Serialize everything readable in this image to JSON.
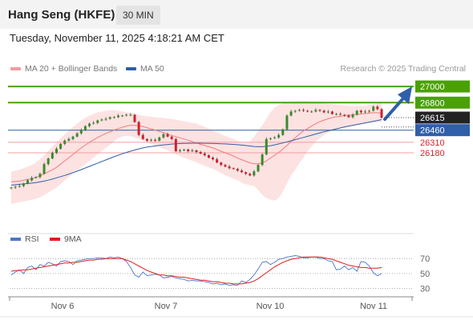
{
  "header": {
    "title": "Hang Seng (HKFE)",
    "timeframe": "30 MIN"
  },
  "timestamp": "Tuesday, November 11, 2025 4:18:21 AM CET",
  "legend": {
    "ma20": "MA 20 + Bollinger Bands",
    "ma50": "MA 50"
  },
  "credit": "Research © 2025 Trading Central",
  "rsi_legend": {
    "rsi": "RSI",
    "ma9": "9MA"
  },
  "colors": {
    "green": "#4aa103",
    "blue": "#2f5fa8",
    "red": "#d9232d",
    "band": "#fde0e0",
    "up": "#3a8a2a",
    "down": "#d11f2a"
  },
  "chart_data": [
    {
      "type": "candlestick",
      "title": "Hang Seng (HKFE)",
      "x_labels": [
        "Nov 6",
        "Nov 7",
        "Nov 10",
        "Nov 11"
      ],
      "ylim": [
        25280,
        27080
      ],
      "current_price": 26615,
      "levels": [
        {
          "value": 27000,
          "label": "27000",
          "type": "resistance"
        },
        {
          "value": 26800,
          "label": "26800",
          "type": "resistance"
        },
        {
          "value": 26615,
          "label": "26615",
          "type": "last"
        },
        {
          "value": 26460,
          "label": "26460",
          "type": "pivot"
        },
        {
          "value": 26310,
          "label": "26310",
          "type": "support"
        },
        {
          "value": 26180,
          "label": "26180",
          "type": "support"
        }
      ],
      "close": [
        25750,
        25760,
        25770,
        25800,
        25840,
        25870,
        25880,
        25920,
        26040,
        26110,
        26180,
        26230,
        26290,
        26330,
        26350,
        26380,
        26420,
        26460,
        26510,
        26540,
        26550,
        26580,
        26590,
        26600,
        26620,
        26620,
        26640,
        26640,
        26650,
        26650,
        26560,
        26400,
        26350,
        26330,
        26340,
        26330,
        26370,
        26410,
        26380,
        26350,
        26200,
        26210,
        26220,
        26200,
        26210,
        26190,
        26170,
        26150,
        26120,
        26100,
        26060,
        26030,
        26010,
        25990,
        25980,
        25960,
        25940,
        25920,
        25900,
        25950,
        26030,
        26160,
        26350,
        26360,
        26370,
        26400,
        26470,
        26640,
        26690,
        26700,
        26710,
        26700,
        26690,
        26690,
        26710,
        26700,
        26680,
        26690,
        26660,
        26660,
        26650,
        26640,
        26620,
        26650,
        26700,
        26680,
        26690,
        26700,
        26750,
        26720,
        26615
      ],
      "series": [
        {
          "name": "MA 20",
          "values": [
            25820,
            25825,
            25830,
            25840,
            25850,
            25860,
            25875,
            25895,
            25920,
            25945,
            25970,
            26000,
            26040,
            26080,
            26120,
            26160,
            26200,
            26240,
            26275,
            26310,
            26340,
            26370,
            26395,
            26420,
            26440,
            26460,
            26480,
            26495,
            26510,
            26520,
            26520,
            26515,
            26505,
            26490,
            26475,
            26460,
            26445,
            26430,
            26410,
            26395,
            26380,
            26365,
            26350,
            26335,
            26320,
            26300,
            26285,
            26270,
            26255,
            26240,
            26220,
            26200,
            26180,
            26160,
            26140,
            26115,
            26095,
            26075,
            26055,
            26045,
            26045,
            26055,
            26080,
            26115,
            26150,
            26185,
            26225,
            26270,
            26320,
            26365,
            26410,
            26450,
            26480,
            26510,
            26540,
            26565,
            26585,
            26600,
            26615,
            26625,
            26630,
            26640,
            26645,
            26650,
            26655,
            26660,
            26665,
            26670,
            26675,
            26675,
            26670
          ]
        },
        {
          "name": "MA 50",
          "values": [
            25780,
            25785,
            25790,
            25795,
            25800,
            25805,
            25812,
            25820,
            25830,
            25842,
            25855,
            25870,
            25885,
            25900,
            25917,
            25935,
            25953,
            25972,
            25992,
            26012,
            26032,
            26052,
            26072,
            26092,
            26112,
            26132,
            26150,
            26168,
            26185,
            26200,
            26215,
            26228,
            26240,
            26250,
            26258,
            26265,
            26272,
            26278,
            26283,
            26288,
            26292,
            26295,
            26297,
            26298,
            26299,
            26299,
            26299,
            26298,
            26297,
            26296,
            26294,
            26292,
            26290,
            26287,
            26284,
            26280,
            26275,
            26270,
            26264,
            26258,
            26255,
            26255,
            26260,
            26268,
            26278,
            26290,
            26302,
            26315,
            26328,
            26342,
            26356,
            26370,
            26384,
            26398,
            26412,
            26426,
            26440,
            26452,
            26464,
            26476,
            26488,
            26500,
            26510,
            26520,
            26530,
            26540,
            26550,
            26560,
            26570,
            26580,
            26590
          ]
        }
      ],
      "bollinger": {
        "upper": [
          25950,
          25960,
          25970,
          25990,
          26010,
          26030,
          26060,
          26100,
          26150,
          26200,
          26260,
          26310,
          26360,
          26410,
          26450,
          26500,
          26540,
          26580,
          26610,
          26640,
          26660,
          26680,
          26690,
          26700,
          26705,
          26705,
          26700,
          26690,
          26680,
          26675,
          26665,
          26650,
          26640,
          26630,
          26625,
          26620,
          26615,
          26610,
          26605,
          26600,
          26590,
          26580,
          26570,
          26560,
          26550,
          26540,
          26520,
          26500,
          26480,
          26455,
          26430,
          26410,
          26390,
          26370,
          26350,
          26330,
          26310,
          26300,
          26320,
          26380,
          26450,
          26520,
          26600,
          26680,
          26740,
          26770,
          26790,
          26800,
          26810,
          26815,
          26820,
          26820,
          26815,
          26810,
          26800,
          26795,
          26790,
          26785,
          26780,
          26775,
          26770,
          26765,
          26760,
          26760,
          26760,
          26760,
          26760,
          26770,
          26780,
          26790,
          26800
        ],
        "lower": [
          25550,
          25560,
          25570,
          25580,
          25590,
          25600,
          25610,
          25630,
          25660,
          25690,
          25720,
          25750,
          25790,
          25840,
          25880,
          25920,
          25960,
          26000,
          26040,
          26080,
          26120,
          26160,
          26200,
          26240,
          26280,
          26320,
          26360,
          26380,
          26390,
          26385,
          26370,
          26350,
          26330,
          26310,
          26290,
          26270,
          26250,
          26230,
          26210,
          26190,
          26160,
          26140,
          26120,
          26100,
          26080,
          26060,
          26040,
          26020,
          26000,
          25980,
          25960,
          25930,
          25900,
          25880,
          25860,
          25840,
          25810,
          25790,
          25780,
          25770,
          25720,
          25660,
          25620,
          25600,
          25590,
          25620,
          25700,
          25800,
          25900,
          25970,
          26050,
          26120,
          26200,
          26260,
          26320,
          26360,
          26400,
          26430,
          26450,
          26470,
          26480,
          26490,
          26500,
          26510,
          26520,
          26530,
          26540,
          26550,
          26555,
          26560,
          26560
        ]
      }
    },
    {
      "type": "line",
      "title": "RSI",
      "ylim": [
        22,
        82
      ],
      "ticks": [
        70,
        50,
        30
      ],
      "series": [
        {
          "name": "RSI",
          "values": [
            48,
            52,
            55,
            50,
            58,
            60,
            55,
            62,
            60,
            65,
            63,
            60,
            66,
            67,
            66,
            62,
            67,
            68,
            69,
            70,
            70,
            71,
            71,
            70,
            72,
            71,
            72,
            70,
            66,
            58,
            48,
            45,
            52,
            47,
            48,
            49,
            48,
            44,
            45,
            46,
            44,
            43,
            42,
            40,
            41,
            40,
            40,
            39,
            38,
            36,
            37,
            35,
            36,
            34,
            35,
            34,
            40,
            38,
            42,
            48,
            56,
            65,
            66,
            62,
            65,
            69,
            70,
            72,
            73,
            74,
            73,
            71,
            71,
            72,
            72,
            70,
            70,
            67,
            66,
            55,
            56,
            60,
            55,
            58,
            53,
            66,
            65,
            60,
            51,
            47,
            50
          ]
        },
        {
          "name": "9MA",
          "values": [
            53,
            54,
            54,
            55,
            55,
            56,
            57,
            58,
            59,
            60,
            61,
            62,
            63,
            64,
            64,
            65,
            65,
            66,
            67,
            68,
            68,
            69,
            69,
            70,
            70,
            70,
            70,
            70,
            68,
            66,
            63,
            60,
            57,
            54,
            52,
            50,
            48,
            48,
            47,
            47,
            46,
            45,
            45,
            44,
            43,
            42,
            41,
            41,
            40,
            39,
            39,
            38,
            37,
            37,
            36,
            36,
            36,
            37,
            38,
            40,
            43,
            47,
            51,
            55,
            59,
            62,
            65,
            67,
            69,
            70,
            71,
            72,
            72,
            72,
            72,
            72,
            71,
            70,
            69,
            67,
            65,
            63,
            61,
            60,
            59,
            58,
            58,
            57,
            57,
            57,
            58
          ]
        }
      ]
    }
  ]
}
